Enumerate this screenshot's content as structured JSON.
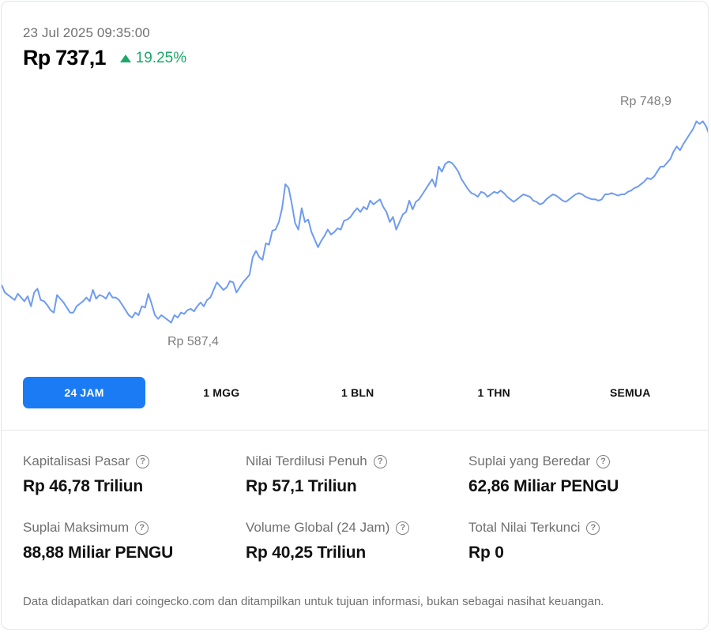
{
  "header": {
    "timestamp": "23 Jul 2025 09:35:00",
    "price": "Rp 737,1",
    "change": "19.25%"
  },
  "colors": {
    "accent": "#1b7bf5",
    "line": "#6f9bf0",
    "positive": "#1aa866"
  },
  "chart_data": {
    "type": "line",
    "high_label": "Rp 748,9",
    "low_label": "Rp 587,4",
    "grid": false,
    "legend": "none",
    "series": [
      {
        "values": [
          618,
          612,
          610,
          608,
          606,
          611,
          608,
          605,
          609,
          601,
          612,
          615,
          606,
          605,
          602,
          598,
          596,
          610,
          607,
          604,
          600,
          596,
          596,
          601,
          603,
          605,
          608,
          605,
          614,
          607,
          610,
          609,
          607,
          612,
          608,
          608,
          606,
          602,
          598,
          594,
          592,
          596,
          594,
          601,
          600,
          611,
          603,
          594,
          591,
          594,
          592,
          590,
          588,
          594,
          592,
          596,
          595,
          598,
          599,
          597,
          601,
          604,
          601,
          606,
          608,
          614,
          620,
          617,
          614,
          616,
          621,
          620,
          612,
          616,
          620,
          623,
          626,
          640,
          645,
          640,
          638,
          651,
          650,
          661,
          662,
          668,
          679,
          698,
          695,
          682,
          667,
          662,
          679,
          668,
          670,
          660,
          654,
          648,
          653,
          657,
          662,
          658,
          660,
          663,
          662,
          669,
          670,
          672,
          676,
          679,
          676,
          680,
          678,
          685,
          682,
          684,
          686,
          680,
          676,
          668,
          672,
          662,
          668,
          674,
          676,
          685,
          678,
          684,
          686,
          690,
          694,
          698,
          702,
          696,
          712,
          708,
          714,
          716,
          715,
          712,
          708,
          702,
          698,
          694,
          691,
          690,
          688,
          692,
          691,
          688,
          690,
          692,
          691,
          693,
          691,
          688,
          686,
          684,
          686,
          688,
          690,
          689,
          688,
          685,
          684,
          682,
          683,
          686,
          688,
          690,
          689,
          687,
          685,
          684,
          686,
          688,
          690,
          691,
          690,
          688,
          687,
          686,
          686,
          685,
          686,
          690,
          690,
          691,
          690,
          689,
          690,
          690,
          692,
          693,
          695,
          696,
          698,
          700,
          703,
          702,
          704,
          708,
          712,
          712,
          715,
          718,
          724,
          728,
          725,
          730,
          734,
          738,
          742,
          748,
          746,
          748,
          744,
          737
        ]
      }
    ]
  },
  "tabs": [
    "24 JAM",
    "1 MGG",
    "1 BLN",
    "1 THN",
    "SEMUA"
  ],
  "stats": [
    {
      "label": "Kapitalisasi Pasar",
      "value": "Rp 46,78 Triliun"
    },
    {
      "label": "Nilai Terdilusi Penuh",
      "value": "Rp 57,1 Triliun"
    },
    {
      "label": "Suplai yang Beredar",
      "value": "62,86 Miliar PENGU"
    },
    {
      "label": "Suplai Maksimum",
      "value": "88,88 Miliar PENGU"
    },
    {
      "label": "Volume Global (24 Jam)",
      "value": "Rp 40,25 Triliun"
    },
    {
      "label": "Total Nilai Terkunci",
      "value": "Rp 0"
    }
  ],
  "help_icon_glyph": "?",
  "footer": "Data didapatkan dari coingecko.com dan ditampilkan untuk tujuan informasi, bukan sebagai nasihat keuangan."
}
